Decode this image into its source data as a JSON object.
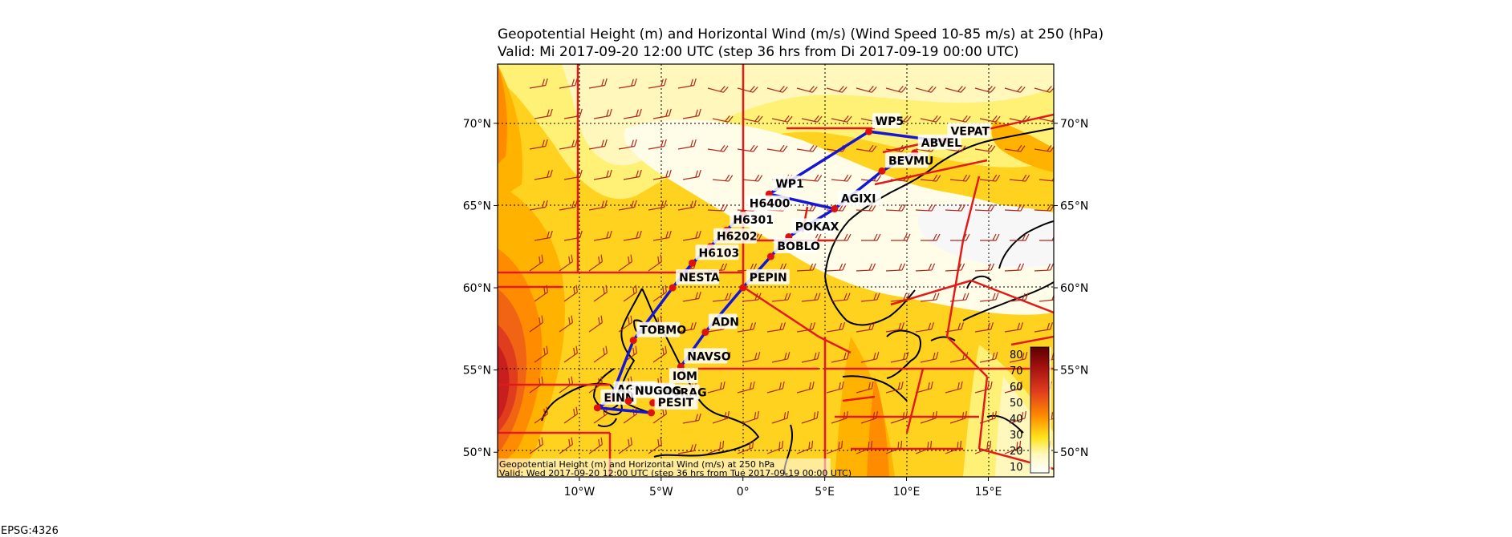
{
  "title": {
    "line1": "Geopotential Height (m) and Horizontal Wind (m/s) (Wind Speed 10-85 m/s) at 250 (hPa)",
    "line2": "Valid: Mi 2017-09-20 12:00 UTC (step 36 hrs from Di 2017-09-19 00:00 UTC)"
  },
  "footer": {
    "line1": "Geopotential Height (m) and Horizontal Wind (m/s) at 250 hPa",
    "line2": "Valid: Wed 2017-09-20 12:00 UTC (step 36 hrs from Tue 2017-09-19 00:00 UTC)"
  },
  "projection_label": "EPSG:4326",
  "axes": {
    "lon_ticks": [
      "10°W",
      "5°W",
      "0°",
      "5°E",
      "10°E",
      "15°E"
    ],
    "lat_ticks": [
      "70°N",
      "65°N",
      "60°N",
      "55°N",
      "50°N"
    ],
    "lon_values": [
      -10,
      -5,
      0,
      5,
      10,
      15
    ],
    "lat_values": [
      70,
      65,
      60,
      55,
      50
    ],
    "lon_range": [
      -15,
      19
    ],
    "lat_range": [
      48.5,
      73.6
    ]
  },
  "colorbar": {
    "ticks": [
      "80",
      "70",
      "60",
      "50",
      "40",
      "30",
      "20",
      "10"
    ],
    "colors": [
      "#ffffff",
      "#fff7bc",
      "#fff176",
      "#ffe41a",
      "#ffb300",
      "#ff8c00",
      "#f06414",
      "#e03c1e",
      "#c81e1e",
      "#a00f0f",
      "#5c0000"
    ]
  },
  "colors": {
    "route": "#1515d8",
    "waypoint": "#e01010",
    "border": "#e21a1a",
    "coast": "#000000",
    "barb": "#b0281e"
  },
  "waypoints": [
    {
      "id": "WP5",
      "lon": 7.7,
      "lat": 69.5
    },
    {
      "id": "VEPAT",
      "lon": 12.3,
      "lat": 68.9
    },
    {
      "id": "ABVEL",
      "lon": 10.5,
      "lat": 68.2
    },
    {
      "id": "BEVMU",
      "lon": 8.5,
      "lat": 67.1
    },
    {
      "id": "WP1",
      "lon": 1.6,
      "lat": 65.7
    },
    {
      "id": "AGIXI",
      "lon": 5.6,
      "lat": 64.8
    },
    {
      "id": "H6400",
      "lon": 0.0,
      "lat": 64.5
    },
    {
      "id": "H6301",
      "lon": -1.0,
      "lat": 63.5
    },
    {
      "id": "POKAX",
      "lon": 2.8,
      "lat": 63.1
    },
    {
      "id": "H6202",
      "lon": -2.0,
      "lat": 62.5
    },
    {
      "id": "BOBLO",
      "lon": 1.7,
      "lat": 61.9
    },
    {
      "id": "H6103",
      "lon": -3.1,
      "lat": 61.5
    },
    {
      "id": "NESTA",
      "lon": -4.3,
      "lat": 60.0
    },
    {
      "id": "PEPIN",
      "lon": 0.0,
      "lat": 60.0
    },
    {
      "id": "ADN",
      "lon": -2.3,
      "lat": 57.3
    },
    {
      "id": "TOBMO",
      "lon": -6.7,
      "lat": 56.8
    },
    {
      "id": "NAVSO",
      "lon": -3.8,
      "lat": 55.2
    },
    {
      "id": "IOM",
      "lon": -4.7,
      "lat": 54.0
    },
    {
      "id": "AGINI",
      "lon": -8.1,
      "lat": 53.2
    },
    {
      "id": "MORAG",
      "lon": -5.5,
      "lat": 53.0
    },
    {
      "id": "EINN",
      "lon": -8.9,
      "lat": 52.7
    },
    {
      "id": "NUGOG",
      "lon": -7.0,
      "lat": 53.1
    },
    {
      "id": "PESIT",
      "lon": -5.6,
      "lat": 52.4
    }
  ],
  "routes": [
    [
      "EINN",
      "PESIT"
    ],
    [
      "EINN",
      "AGINI",
      "TOBMO",
      "NESTA",
      "H6103",
      "H6202",
      "H6301",
      "H6400"
    ],
    [
      "NAVSO",
      "ADN",
      "PEPIN",
      "BOBLO",
      "POKAX",
      "AGIXI",
      "BEVMU",
      "ABVEL"
    ],
    [
      "WP1",
      "AGIXI"
    ],
    [
      "WP1",
      "WP5",
      "VEPAT"
    ]
  ]
}
